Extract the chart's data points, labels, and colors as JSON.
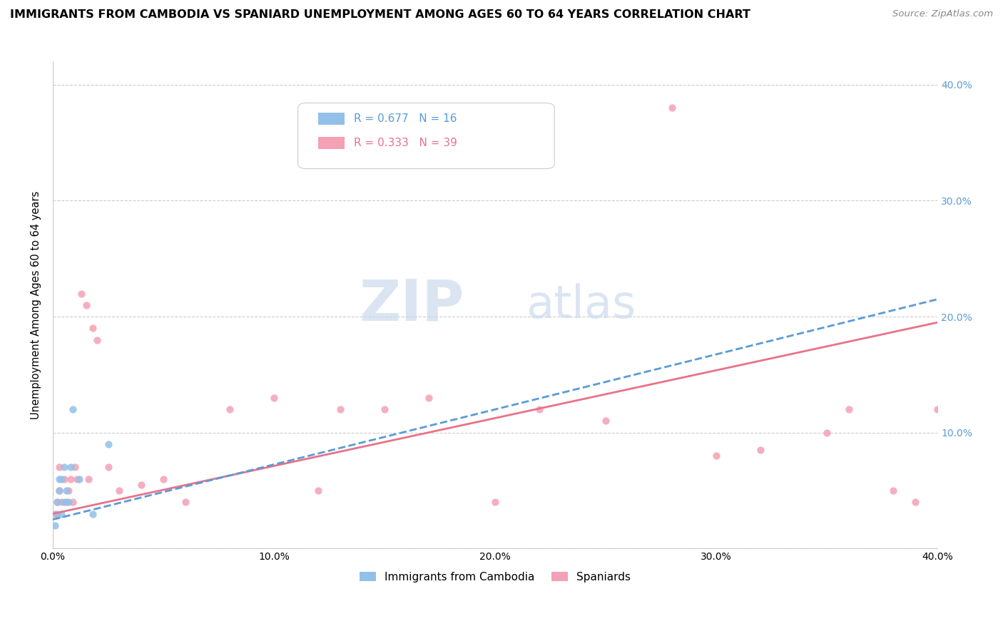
{
  "title": "IMMIGRANTS FROM CAMBODIA VS SPANIARD UNEMPLOYMENT AMONG AGES 60 TO 64 YEARS CORRELATION CHART",
  "source": "Source: ZipAtlas.com",
  "ylabel": "Unemployment Among Ages 60 to 64 years",
  "xlim": [
    0.0,
    0.4
  ],
  "ylim": [
    0.0,
    0.42
  ],
  "ytick_vals": [
    0.0,
    0.1,
    0.2,
    0.3,
    0.4
  ],
  "ytick_labels_right": [
    "",
    "10.0%",
    "20.0%",
    "30.0%",
    "40.0%"
  ],
  "xtick_labels": [
    "0.0%",
    "",
    "10.0%",
    "",
    "20.0%",
    "",
    "30.0%",
    "",
    "40.0%"
  ],
  "xtick_vals": [
    0.0,
    0.05,
    0.1,
    0.15,
    0.2,
    0.25,
    0.3,
    0.35,
    0.4
  ],
  "cambodia_color": "#92c0e8",
  "spaniard_color": "#f4a0b5",
  "cambodia_R": 0.677,
  "cambodia_N": 16,
  "spaniard_R": 0.333,
  "spaniard_N": 39,
  "cambodia_line_color": "#5b9bd5",
  "spaniard_line_color": "#e8728a",
  "right_axis_color": "#5b9bd5",
  "watermark_ZIP": "ZIP",
  "watermark_atlas": "atlas",
  "cambodia_scatter_x": [
    0.001,
    0.002,
    0.002,
    0.003,
    0.003,
    0.004,
    0.004,
    0.005,
    0.005,
    0.006,
    0.007,
    0.008,
    0.009,
    0.012,
    0.018,
    0.025
  ],
  "cambodia_scatter_y": [
    0.02,
    0.03,
    0.04,
    0.05,
    0.06,
    0.03,
    0.06,
    0.04,
    0.07,
    0.05,
    0.04,
    0.07,
    0.12,
    0.06,
    0.03,
    0.09
  ],
  "spaniard_scatter_x": [
    0.001,
    0.002,
    0.003,
    0.003,
    0.004,
    0.005,
    0.006,
    0.007,
    0.008,
    0.009,
    0.01,
    0.011,
    0.013,
    0.015,
    0.016,
    0.018,
    0.02,
    0.025,
    0.03,
    0.04,
    0.05,
    0.06,
    0.08,
    0.1,
    0.12,
    0.13,
    0.15,
    0.17,
    0.2,
    0.22,
    0.25,
    0.28,
    0.3,
    0.32,
    0.35,
    0.36,
    0.38,
    0.39,
    0.4
  ],
  "spaniard_scatter_y": [
    0.03,
    0.04,
    0.05,
    0.07,
    0.04,
    0.06,
    0.04,
    0.05,
    0.06,
    0.04,
    0.07,
    0.06,
    0.22,
    0.21,
    0.06,
    0.19,
    0.18,
    0.07,
    0.05,
    0.055,
    0.06,
    0.04,
    0.12,
    0.13,
    0.05,
    0.12,
    0.12,
    0.13,
    0.04,
    0.12,
    0.11,
    0.38,
    0.08,
    0.085,
    0.1,
    0.12,
    0.05,
    0.04,
    0.12
  ],
  "cambodia_trend_x": [
    0.0,
    0.4
  ],
  "cambodia_trend_y": [
    0.025,
    0.215
  ],
  "spaniard_trend_x": [
    0.0,
    0.4
  ],
  "spaniard_trend_y": [
    0.03,
    0.195
  ]
}
